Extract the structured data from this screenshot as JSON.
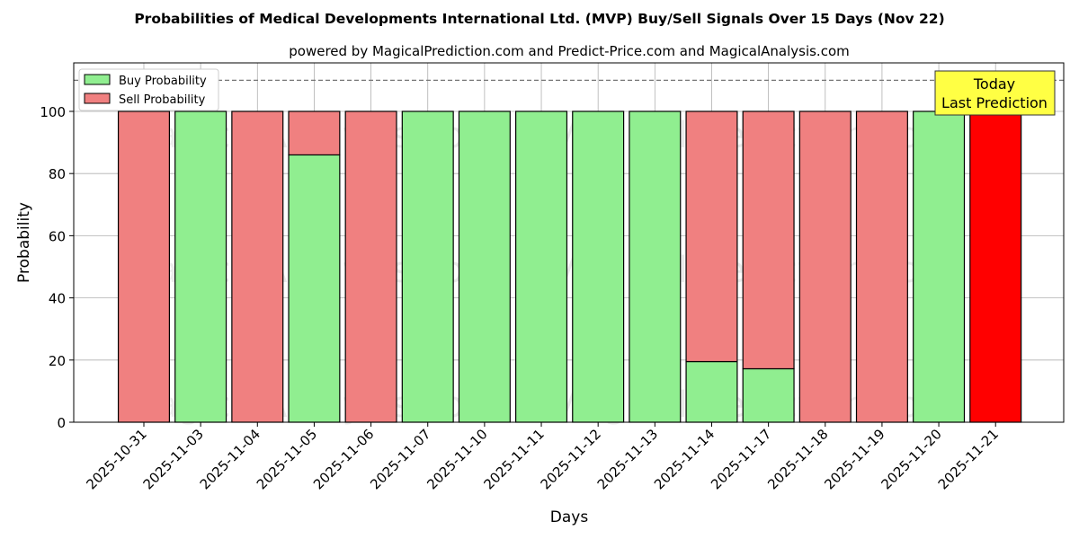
{
  "chart_data": {
    "type": "bar",
    "stacked": true,
    "title": "Probabilities of Medical Developments International Ltd. (MVP) Buy/Sell Signals Over 15 Days (Nov 22)",
    "subtitle": "powered by MagicalPrediction.com and Predict-Price.com and MagicalAnalysis.com",
    "xlabel": "Days",
    "ylabel": "Probability",
    "ylim": [
      0,
      115.6
    ],
    "yticks": [
      0,
      20,
      40,
      60,
      80,
      100
    ],
    "grid": true,
    "reference_line": 110,
    "legend_position": "top-left",
    "categories": [
      "2025-10-31",
      "2025-11-03",
      "2025-11-04",
      "2025-11-05",
      "2025-11-06",
      "2025-11-07",
      "2025-11-10",
      "2025-11-11",
      "2025-11-12",
      "2025-11-13",
      "2025-11-14",
      "2025-11-17",
      "2025-11-18",
      "2025-11-19",
      "2025-11-20",
      "2025-11-21"
    ],
    "series": [
      {
        "name": "Buy Probability",
        "color": "#90ee90",
        "values": [
          0,
          100,
          0,
          86,
          0,
          100,
          100,
          100,
          100,
          100,
          19.5,
          17.2,
          0,
          0,
          100,
          0
        ]
      },
      {
        "name": "Sell Probability",
        "color": "#f08080",
        "values": [
          100,
          0,
          100,
          14,
          100,
          0,
          0,
          0,
          0,
          0,
          80.5,
          82.8,
          100,
          100,
          0,
          100
        ]
      }
    ],
    "highlight": {
      "index": 15,
      "color": "#ff0000"
    },
    "annotation": {
      "line1": "Today",
      "line2": "Last Prediction",
      "color": "#ffff44"
    },
    "watermarks": [
      "MagicalAnalysis.com",
      "MagicalPrediction.com"
    ]
  }
}
